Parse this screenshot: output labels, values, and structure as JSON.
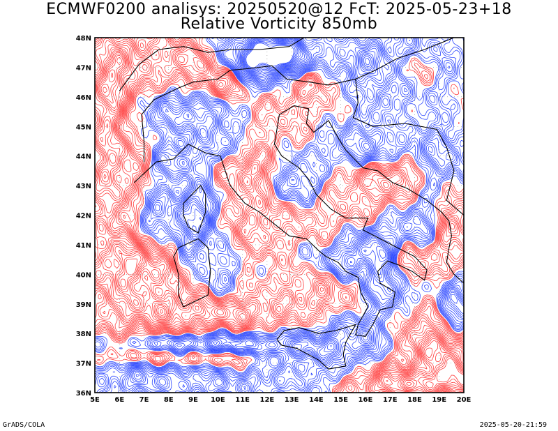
{
  "title": {
    "line1": "ECMWF0200 analisys: 20250520@12 FcT: 2025-05-23+18",
    "line2": "Relative Vorticity 850mb"
  },
  "map": {
    "lon_labels": [
      "5E",
      "6E",
      "7E",
      "8E",
      "9E",
      "10E",
      "11E",
      "12E",
      "13E",
      "14E",
      "15E",
      "16E",
      "17E",
      "18E",
      "19E",
      "20E"
    ],
    "lat_labels": [
      "36N",
      "37N",
      "38N",
      "39N",
      "40N",
      "41N",
      "42N",
      "43N",
      "44N",
      "45N",
      "46N",
      "47N",
      "48N"
    ],
    "lon_range": [
      5,
      20
    ],
    "lat_range": [
      36,
      48
    ],
    "positive_color": "#ff3a3a",
    "negative_color": "#2b46ff",
    "coast_color": "#000000",
    "grid_style": "dotted"
  },
  "footer": {
    "left": "GrADS/COLA",
    "right": "2025-05-20-21:59"
  }
}
